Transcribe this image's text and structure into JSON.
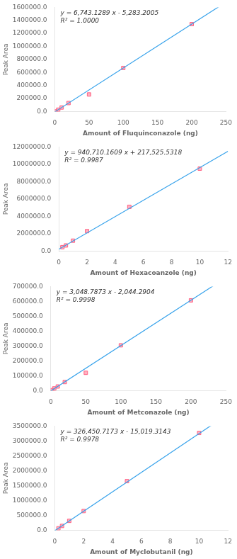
{
  "chart_data": [
    {
      "type": "scatter",
      "x": [
        1,
        5,
        10,
        20,
        50,
        100,
        200
      ],
      "values": [
        1700,
        28000,
        62000,
        130000,
        262000,
        669000,
        1343000
      ],
      "slope": 6743.1289,
      "intercept": -5283.2005,
      "annotations": [
        "y = 6,743.1289 x - 5,283.2005",
        "R² = 1.0000"
      ],
      "xlabel": "Amount of Fluquinconazole (ng)",
      "ylabel": "Peak Area",
      "xlim": [
        0,
        250
      ],
      "ylim": [
        0,
        1600000
      ],
      "xticks": [
        0,
        50,
        100,
        150,
        200,
        250
      ],
      "yticks": [
        {
          "value": 0,
          "label": "0.0"
        },
        {
          "value": 200000,
          "label": "200000.0"
        },
        {
          "value": 400000,
          "label": "400000.0"
        },
        {
          "value": 600000,
          "label": "600000.0"
        },
        {
          "value": 800000,
          "label": "800000.0"
        },
        {
          "value": 1000000,
          "label": "1000000.0"
        },
        {
          "value": 1200000,
          "label": "1200000.0"
        },
        {
          "value": 1400000,
          "label": "1400000.0"
        },
        {
          "value": 1600000,
          "label": "1600000.0"
        }
      ],
      "marker": "square",
      "grid": false
    },
    {
      "type": "scatter",
      "x": [
        0.25,
        0.5,
        1,
        2,
        5,
        10
      ],
      "values": [
        450000,
        650000,
        1200000,
        2300000,
        5100000,
        9500000
      ],
      "slope": 940710.1609,
      "intercept": 217525.5318,
      "annotations": [
        "y = 940,710.1609 x + 217,525.5318",
        "R² = 0.9987"
      ],
      "xlabel": "Amount of Hexacoanzole (ng)",
      "ylabel": "Peak Area",
      "xlim": [
        0,
        12
      ],
      "ylim": [
        0,
        12000000
      ],
      "xticks": [
        0,
        2,
        4,
        6,
        8,
        10,
        12
      ],
      "yticks": [
        {
          "value": 0,
          "label": "0.0"
        },
        {
          "value": 2000000,
          "label": "2000000.0"
        },
        {
          "value": 4000000,
          "label": "4000000.0"
        },
        {
          "value": 6000000,
          "label": "6000000.0"
        },
        {
          "value": 8000000,
          "label": "8000000.0"
        },
        {
          "value": 10000000,
          "label": "10000000.0"
        },
        {
          "value": 12000000,
          "label": "12000000.0"
        }
      ],
      "marker": "square",
      "grid": false
    },
    {
      "type": "scatter",
      "x": [
        2,
        5,
        10,
        20,
        50,
        100,
        200
      ],
      "values": [
        3000,
        15000,
        28000,
        58000,
        120000,
        305000,
        607000
      ],
      "slope": 3048.7873,
      "intercept": -2044.2904,
      "annotations": [
        "y = 3,048.7873 x - 2,044.2904",
        "R² = 0.9998"
      ],
      "xlabel": "Amount of Metconazole (ng)",
      "ylabel": "Peak Area",
      "xlim": [
        0,
        250
      ],
      "ylim": [
        0,
        700000
      ],
      "xticks": [
        0,
        50,
        100,
        150,
        200,
        250
      ],
      "yticks": [
        {
          "value": 0,
          "label": "0.0"
        },
        {
          "value": 100000,
          "label": "100000.0"
        },
        {
          "value": 200000,
          "label": "200000.0"
        },
        {
          "value": 300000,
          "label": "300000.0"
        },
        {
          "value": 400000,
          "label": "400000.0"
        },
        {
          "value": 500000,
          "label": "500000.0"
        },
        {
          "value": 600000,
          "label": "600000.0"
        },
        {
          "value": 700000,
          "label": "700000.0"
        }
      ],
      "marker": "square",
      "grid": false
    },
    {
      "type": "scatter",
      "x": [
        0.25,
        0.5,
        1,
        2,
        5,
        10
      ],
      "values": [
        65000,
        145000,
        315000,
        645000,
        1650000,
        3270000
      ],
      "slope": 326450.7173,
      "intercept": -15019.3143,
      "annotations": [
        "y = 326,450.7173 x - 15,019.3143",
        "R² = 0.9978"
      ],
      "xlabel": "Amount of Myclobutanil (ng)",
      "ylabel": "Peak Area",
      "xlim": [
        0,
        12
      ],
      "ylim": [
        0,
        3500000
      ],
      "xticks": [
        0,
        2,
        4,
        6,
        8,
        10,
        12
      ],
      "yticks": [
        {
          "value": 0,
          "label": "0.0"
        },
        {
          "value": 500000,
          "label": "500000.0"
        },
        {
          "value": 1000000,
          "label": "1000000.0"
        },
        {
          "value": 1500000,
          "label": "1500000.0"
        },
        {
          "value": 2000000,
          "label": "2000000.0"
        },
        {
          "value": 2500000,
          "label": "2500000.0"
        },
        {
          "value": 3000000,
          "label": "3000000.0"
        },
        {
          "value": 3500000,
          "label": "3500000.0"
        }
      ],
      "marker": "square",
      "grid": false
    }
  ]
}
